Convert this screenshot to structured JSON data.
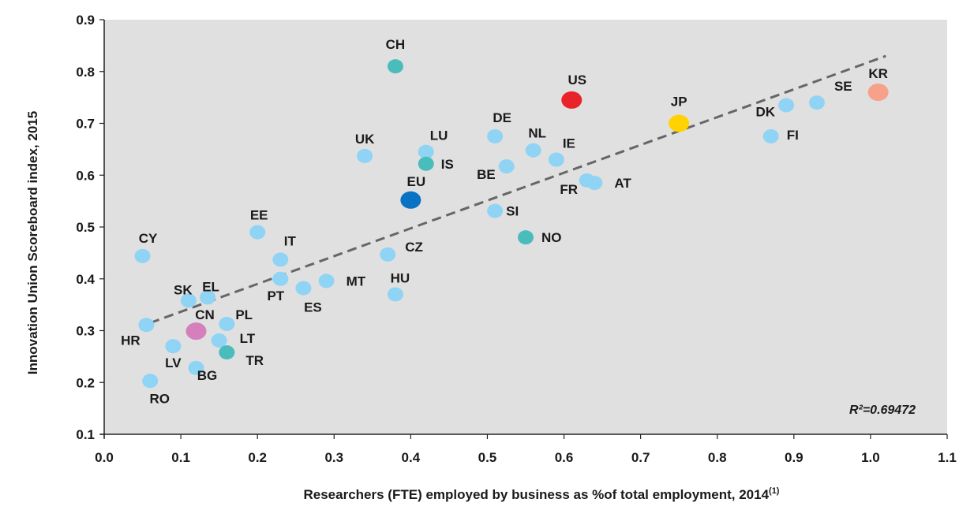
{
  "chart_data": {
    "type": "scatter",
    "title": "",
    "xlabel": "Researchers (FTE) employed by business as %of total employment, 2014",
    "xlabel_note": "(1)",
    "ylabel": "Innovation Union Scoreboard index, 2015",
    "xlim": [
      0.0,
      1.1
    ],
    "ylim": [
      0.1,
      0.9
    ],
    "xticks": [
      "0.0",
      "0.1",
      "0.2",
      "0.3",
      "0.4",
      "0.5",
      "0.6",
      "0.7",
      "0.8",
      "0.9",
      "1.0",
      "1.1"
    ],
    "yticks": [
      "0.1",
      "0.2",
      "0.3",
      "0.4",
      "0.5",
      "0.6",
      "0.7",
      "0.8",
      "0.9"
    ],
    "grid": false,
    "annotation": "R²=0.69472",
    "trendline": {
      "x": [
        0.06,
        1.02
      ],
      "y": [
        0.315,
        0.83
      ],
      "color": "#666666"
    },
    "colors": {
      "default": "#8fd3f5",
      "teal": "#4bbcbc",
      "US": "#e8242a",
      "JP": "#ffd200",
      "KR": "#f7a08a",
      "CN": "#d67fbd",
      "EU": "#0a72c2",
      "background": "#e0e0e0"
    },
    "points": [
      {
        "label": "CH",
        "x": 0.38,
        "y": 0.81,
        "color": "teal"
      },
      {
        "label": "US",
        "x": 0.61,
        "y": 0.745,
        "color": "US",
        "big": true
      },
      {
        "label": "KR",
        "x": 1.01,
        "y": 0.76,
        "color": "KR",
        "big": true
      },
      {
        "label": "SE",
        "x": 0.93,
        "y": 0.74,
        "color": "default"
      },
      {
        "label": "DK",
        "x": 0.89,
        "y": 0.735,
        "color": "default"
      },
      {
        "label": "JP",
        "x": 0.75,
        "y": 0.7,
        "color": "JP",
        "big": true
      },
      {
        "label": "FI",
        "x": 0.87,
        "y": 0.675,
        "color": "default"
      },
      {
        "label": "DE",
        "x": 0.51,
        "y": 0.675,
        "color": "default"
      },
      {
        "label": "NL",
        "x": 0.56,
        "y": 0.648,
        "color": "default"
      },
      {
        "label": "IE",
        "x": 0.59,
        "y": 0.63,
        "color": "default"
      },
      {
        "label": "LU",
        "x": 0.42,
        "y": 0.645,
        "color": "default"
      },
      {
        "label": "IS",
        "x": 0.42,
        "y": 0.622,
        "color": "teal"
      },
      {
        "label": "UK",
        "x": 0.34,
        "y": 0.637,
        "color": "default"
      },
      {
        "label": "BE",
        "x": 0.525,
        "y": 0.617,
        "color": "default"
      },
      {
        "label": "FR",
        "x": 0.63,
        "y": 0.59,
        "color": "default"
      },
      {
        "label": "AT",
        "x": 0.64,
        "y": 0.585,
        "color": "default"
      },
      {
        "label": "EU",
        "x": 0.4,
        "y": 0.552,
        "color": "EU",
        "big": true
      },
      {
        "label": "SI",
        "x": 0.51,
        "y": 0.531,
        "color": "default"
      },
      {
        "label": "NO",
        "x": 0.55,
        "y": 0.48,
        "color": "teal"
      },
      {
        "label": "CZ",
        "x": 0.37,
        "y": 0.447,
        "color": "default"
      },
      {
        "label": "EE",
        "x": 0.2,
        "y": 0.49,
        "color": "default"
      },
      {
        "label": "CY",
        "x": 0.05,
        "y": 0.444,
        "color": "default"
      },
      {
        "label": "IT",
        "x": 0.23,
        "y": 0.437,
        "color": "default"
      },
      {
        "label": "PT",
        "x": 0.23,
        "y": 0.4,
        "color": "default"
      },
      {
        "label": "MT",
        "x": 0.29,
        "y": 0.396,
        "color": "default"
      },
      {
        "label": "ES",
        "x": 0.26,
        "y": 0.382,
        "color": "default"
      },
      {
        "label": "HU",
        "x": 0.38,
        "y": 0.37,
        "color": "default"
      },
      {
        "label": "SK",
        "x": 0.11,
        "y": 0.358,
        "color": "default"
      },
      {
        "label": "EL",
        "x": 0.135,
        "y": 0.364,
        "color": "default"
      },
      {
        "label": "HR",
        "x": 0.055,
        "y": 0.311,
        "color": "default"
      },
      {
        "label": "PL",
        "x": 0.16,
        "y": 0.313,
        "color": "default"
      },
      {
        "label": "CN",
        "x": 0.12,
        "y": 0.299,
        "color": "CN",
        "big": true
      },
      {
        "label": "LT",
        "x": 0.15,
        "y": 0.281,
        "color": "default"
      },
      {
        "label": "LV",
        "x": 0.09,
        "y": 0.27,
        "color": "default"
      },
      {
        "label": "TR",
        "x": 0.16,
        "y": 0.258,
        "color": "teal"
      },
      {
        "label": "BG",
        "x": 0.12,
        "y": 0.228,
        "color": "default"
      },
      {
        "label": "RO",
        "x": 0.06,
        "y": 0.203,
        "color": "default"
      }
    ]
  }
}
